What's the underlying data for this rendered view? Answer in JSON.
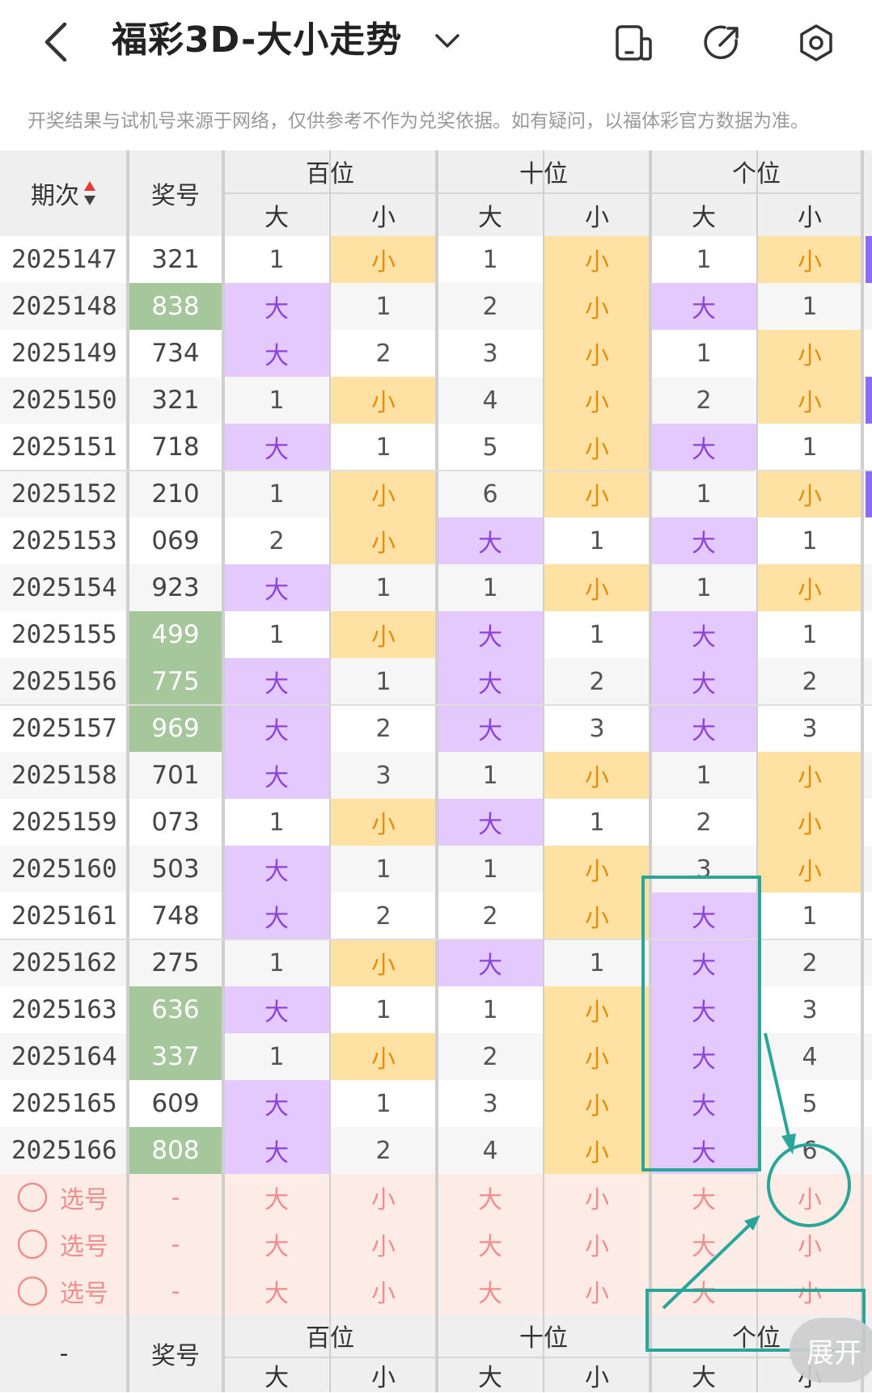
{
  "header": {
    "title": "福彩3D-大小走势"
  },
  "icons": {
    "back": "back-arrow-icon",
    "dropdown": "chevron-down-icon",
    "device": "device-icon",
    "share": "share-icon",
    "settings": "settings-icon"
  },
  "notice": "开奖结果与试机号来源于网络，仅供参考不作为兑奖依据。如有疑问，以福体彩官方数据为准。",
  "columns": {
    "period": "期次",
    "number": "奖号",
    "groups": [
      "百位",
      "十位",
      "个位"
    ],
    "big": "大",
    "small": "小"
  },
  "rows": [
    {
      "period": "2025147",
      "number": "321",
      "pair": false,
      "cells": [
        "1",
        "小",
        "1",
        "小",
        "1",
        "小"
      ]
    },
    {
      "period": "2025148",
      "number": "838",
      "pair": true,
      "cells": [
        "大",
        "1",
        "2",
        "小",
        "大",
        "1"
      ]
    },
    {
      "period": "2025149",
      "number": "734",
      "pair": false,
      "cells": [
        "大",
        "2",
        "3",
        "小",
        "1",
        "小"
      ]
    },
    {
      "period": "2025150",
      "number": "321",
      "pair": false,
      "cells": [
        "1",
        "小",
        "4",
        "小",
        "2",
        "小"
      ]
    },
    {
      "period": "2025151",
      "number": "718",
      "pair": false,
      "cells": [
        "大",
        "1",
        "5",
        "小",
        "大",
        "1"
      ]
    },
    {
      "period": "2025152",
      "number": "210",
      "pair": false,
      "cells": [
        "1",
        "小",
        "6",
        "小",
        "1",
        "小"
      ]
    },
    {
      "period": "2025153",
      "number": "069",
      "pair": false,
      "cells": [
        "2",
        "小",
        "大",
        "1",
        "大",
        "1"
      ]
    },
    {
      "period": "2025154",
      "number": "923",
      "pair": false,
      "cells": [
        "大",
        "1",
        "1",
        "小",
        "1",
        "小"
      ]
    },
    {
      "period": "2025155",
      "number": "499",
      "pair": true,
      "cells": [
        "1",
        "小",
        "大",
        "1",
        "大",
        "1"
      ]
    },
    {
      "period": "2025156",
      "number": "775",
      "pair": true,
      "cells": [
        "大",
        "1",
        "大",
        "2",
        "大",
        "2"
      ]
    },
    {
      "period": "2025157",
      "number": "969",
      "pair": true,
      "cells": [
        "大",
        "2",
        "大",
        "3",
        "大",
        "3"
      ]
    },
    {
      "period": "2025158",
      "number": "701",
      "pair": false,
      "cells": [
        "大",
        "3",
        "1",
        "小",
        "1",
        "小"
      ]
    },
    {
      "period": "2025159",
      "number": "073",
      "pair": false,
      "cells": [
        "1",
        "小",
        "大",
        "1",
        "2",
        "小"
      ]
    },
    {
      "period": "2025160",
      "number": "503",
      "pair": false,
      "cells": [
        "大",
        "1",
        "1",
        "小",
        "3",
        "小"
      ]
    },
    {
      "period": "2025161",
      "number": "748",
      "pair": false,
      "cells": [
        "大",
        "2",
        "2",
        "小",
        "大",
        "1"
      ]
    },
    {
      "period": "2025162",
      "number": "275",
      "pair": false,
      "cells": [
        "1",
        "小",
        "大",
        "1",
        "大",
        "2"
      ]
    },
    {
      "period": "2025163",
      "number": "636",
      "pair": true,
      "cells": [
        "大",
        "1",
        "1",
        "小",
        "大",
        "3"
      ]
    },
    {
      "period": "2025164",
      "number": "337",
      "pair": true,
      "cells": [
        "1",
        "小",
        "2",
        "小",
        "大",
        "4"
      ]
    },
    {
      "period": "2025165",
      "number": "609",
      "pair": false,
      "cells": [
        "大",
        "1",
        "3",
        "小",
        "大",
        "5"
      ]
    },
    {
      "period": "2025166",
      "number": "808",
      "pair": true,
      "cells": [
        "大",
        "2",
        "4",
        "小",
        "大",
        "6"
      ]
    }
  ],
  "pick_rows": [
    {
      "label": "选号",
      "number": "-",
      "cells": [
        "大",
        "小",
        "大",
        "小",
        "大",
        "小"
      ]
    },
    {
      "label": "选号",
      "number": "-",
      "cells": [
        "大",
        "小",
        "大",
        "小",
        "大",
        "小"
      ]
    },
    {
      "label": "选号",
      "number": "-",
      "cells": [
        "大",
        "小",
        "大",
        "小",
        "大",
        "小"
      ]
    }
  ],
  "footer": {
    "period": "-",
    "number": "奖号",
    "groups": [
      "百位",
      "十位",
      "个位"
    ],
    "big": "大",
    "small": "小"
  },
  "expand_button": "展开",
  "colors": {
    "big_bg": "#e3c9ff",
    "small_bg": "#ffe1a3",
    "pair_bg": "#a6c79c",
    "annotation": "#2aa59a"
  }
}
